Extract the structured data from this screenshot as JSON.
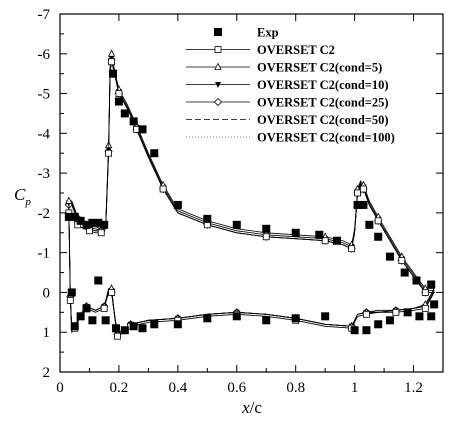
{
  "chart_data": {
    "type": "line",
    "xlabel_main": "x",
    "xlabel_unit": "/c",
    "ylabel_main": "C",
    "ylabel_sub": "p",
    "xlim": [
      0,
      1.3
    ],
    "ylim": [
      2,
      -7
    ],
    "y_inverted": true,
    "grid": false,
    "legend_position": "top-right",
    "xticks": [
      0,
      0.2,
      0.4,
      0.6,
      0.8,
      1,
      1.2
    ],
    "xtick_labels": [
      "0",
      "0.2",
      "0.4",
      "0.6",
      "0.8",
      "1",
      "1.2"
    ],
    "yticks": [
      -7,
      -6,
      -5,
      -4,
      -3,
      -2,
      -1,
      0,
      1,
      2
    ],
    "ytick_labels": [
      "-7",
      "-6",
      "-5",
      "-4",
      "-3",
      "-2",
      "-1",
      "0",
      "1",
      "2"
    ],
    "series": [
      {
        "name": "Exp",
        "style": "markers",
        "marker": "filled-square",
        "x": [
          0.03,
          0.05,
          0.07,
          0.09,
          0.11,
          0.13,
          0.15,
          0.18,
          0.2,
          0.22,
          0.25,
          0.28,
          0.32,
          0.4,
          0.5,
          0.6,
          0.7,
          0.8,
          0.88,
          0.94,
          1.01,
          1.03,
          1.05,
          1.08,
          1.12,
          1.17,
          1.21,
          1.26,
          1.27,
          0.04,
          0.05,
          0.07,
          0.09,
          0.11,
          0.13,
          0.155,
          0.19,
          0.22,
          0.25,
          0.28,
          0.32,
          0.4,
          0.5,
          0.6,
          0.7,
          0.8,
          0.9,
          1.0,
          1.04,
          1.08,
          1.12,
          1.18,
          1.22,
          1.26
        ],
        "y": [
          -1.9,
          -1.9,
          -1.8,
          -1.7,
          -1.75,
          -1.75,
          -1.7,
          -5.5,
          -4.8,
          -4.5,
          -4.3,
          -4.1,
          -3.5,
          -2.2,
          -1.85,
          -1.7,
          -1.6,
          -1.5,
          -1.45,
          -1.3,
          -2.2,
          -2.2,
          -1.7,
          -1.4,
          -0.9,
          -0.5,
          -0.3,
          -0.2,
          0.3,
          0.0,
          0.85,
          0.6,
          0.4,
          0.7,
          -0.3,
          0.7,
          0.9,
          0.95,
          0.85,
          0.9,
          0.8,
          0.8,
          0.65,
          0.6,
          0.7,
          0.65,
          0.6,
          0.95,
          0.95,
          0.8,
          0.7,
          0.5,
          0.6,
          0.6
        ]
      },
      {
        "name": "OVERSET C2",
        "style": "line-markers",
        "marker": "open-square",
        "x": [
          0.03,
          0.04,
          0.06,
          0.08,
          0.1,
          0.12,
          0.14,
          0.155,
          0.165,
          0.17,
          0.175,
          0.185,
          0.2,
          0.23,
          0.26,
          0.3,
          0.35,
          0.4,
          0.5,
          0.6,
          0.7,
          0.8,
          0.9,
          0.96,
          0.99,
          1.0,
          1.01,
          1.02,
          1.03,
          1.05,
          1.08,
          1.12,
          1.16,
          1.2,
          1.24,
          1.27,
          1.24,
          1.2,
          1.14,
          1.08,
          1.04,
          1.01,
          0.99,
          0.9,
          0.8,
          0.7,
          0.6,
          0.5,
          0.4,
          0.3,
          0.24,
          0.21,
          0.195,
          0.185,
          0.175,
          0.165,
          0.15,
          0.12,
          0.09,
          0.07,
          0.05,
          0.04,
          0.035,
          0.03
        ],
        "y": [
          -2.0,
          -2.0,
          -1.7,
          -1.6,
          -1.55,
          -1.5,
          -1.5,
          -1.6,
          -3.5,
          -5.5,
          -5.8,
          -5.5,
          -5.0,
          -4.6,
          -4.1,
          -3.4,
          -2.6,
          -2.0,
          -1.7,
          -1.5,
          -1.4,
          -1.35,
          -1.3,
          -1.2,
          -1.1,
          -1.5,
          -2.5,
          -2.7,
          -2.6,
          -2.2,
          -1.8,
          -1.3,
          -0.8,
          -0.4,
          0.0,
          0.0,
          0.4,
          0.45,
          0.5,
          0.5,
          0.55,
          0.6,
          0.9,
          0.85,
          0.7,
          0.6,
          0.55,
          0.6,
          0.7,
          0.75,
          0.85,
          1.0,
          1.1,
          0.6,
          0.0,
          0.0,
          0.4,
          0.5,
          0.4,
          0.6,
          0.9,
          1.0,
          0.2,
          -2.0
        ]
      },
      {
        "name": "OVERSET C2(cond=5)",
        "style": "line-markers",
        "marker": "open-triangle",
        "x": [
          0.03,
          0.04,
          0.06,
          0.08,
          0.1,
          0.12,
          0.14,
          0.155,
          0.165,
          0.17,
          0.175,
          0.185,
          0.2,
          0.23,
          0.26,
          0.3,
          0.35,
          0.4,
          0.5,
          0.6,
          0.7,
          0.8,
          0.9,
          0.96,
          0.99,
          1.0,
          1.01,
          1.02,
          1.03,
          1.05,
          1.08,
          1.12,
          1.16,
          1.2,
          1.24,
          1.27,
          1.24,
          1.2,
          1.14,
          1.08,
          1.04,
          1.01,
          0.99,
          0.9,
          0.8,
          0.7,
          0.6,
          0.5,
          0.4,
          0.3,
          0.24,
          0.21,
          0.195,
          0.185,
          0.175,
          0.165,
          0.15,
          0.12,
          0.09,
          0.07,
          0.05,
          0.04,
          0.035,
          0.03
        ],
        "y": [
          -2.3,
          -2.3,
          -1.9,
          -1.8,
          -1.7,
          -1.65,
          -1.6,
          -1.7,
          -3.7,
          -5.7,
          -6.0,
          -5.6,
          -5.1,
          -4.7,
          -4.2,
          -3.5,
          -2.7,
          -2.1,
          -1.8,
          -1.6,
          -1.5,
          -1.45,
          -1.4,
          -1.3,
          -1.2,
          -1.6,
          -2.6,
          -2.8,
          -2.7,
          -2.3,
          -1.9,
          -1.4,
          -0.9,
          -0.5,
          -0.1,
          -0.1,
          0.3,
          0.4,
          0.45,
          0.45,
          0.5,
          0.55,
          0.85,
          0.8,
          0.65,
          0.55,
          0.5,
          0.55,
          0.65,
          0.7,
          0.8,
          0.95,
          1.05,
          0.55,
          -0.1,
          -0.1,
          0.35,
          0.45,
          0.35,
          0.55,
          0.85,
          0.95,
          0.1,
          -2.3
        ]
      },
      {
        "name": "OVERSET C2(cond=10)",
        "style": "line-markers",
        "marker": "filled-triangle-down",
        "x": [
          0.03,
          0.04,
          0.06,
          0.08,
          0.1,
          0.12,
          0.14,
          0.155,
          0.165,
          0.17,
          0.175,
          0.185,
          0.2,
          0.23,
          0.26,
          0.3,
          0.35,
          0.4,
          0.5,
          0.6,
          0.7,
          0.8,
          0.9,
          0.96,
          0.99,
          1.0,
          1.01,
          1.02,
          1.03,
          1.05,
          1.08,
          1.12,
          1.16,
          1.2,
          1.24,
          1.27,
          1.24,
          1.2,
          1.14,
          1.08,
          1.04,
          1.01,
          0.99,
          0.9,
          0.8,
          0.7,
          0.6,
          0.5,
          0.4,
          0.3,
          0.24,
          0.21,
          0.195,
          0.185,
          0.175,
          0.165,
          0.15,
          0.12,
          0.09,
          0.07,
          0.05,
          0.04,
          0.035,
          0.03
        ],
        "y": [
          -2.25,
          -2.25,
          -1.85,
          -1.75,
          -1.65,
          -1.6,
          -1.55,
          -1.65,
          -3.6,
          -5.6,
          -5.9,
          -5.55,
          -5.05,
          -4.65,
          -4.15,
          -3.45,
          -2.65,
          -2.05,
          -1.75,
          -1.55,
          -1.45,
          -1.4,
          -1.35,
          -1.25,
          -1.15,
          -1.55,
          -2.55,
          -2.75,
          -2.65,
          -2.25,
          -1.85,
          -1.35,
          -0.85,
          -0.45,
          -0.05,
          -0.05,
          0.35,
          0.4,
          0.45,
          0.5,
          0.5,
          0.55,
          0.85,
          0.8,
          0.65,
          0.55,
          0.5,
          0.55,
          0.65,
          0.7,
          0.8,
          0.95,
          1.05,
          0.55,
          -0.05,
          -0.05,
          0.35,
          0.45,
          0.35,
          0.55,
          0.85,
          0.95,
          0.1,
          -2.25
        ]
      },
      {
        "name": "OVERSET C2(cond=25)",
        "style": "line-markers",
        "marker": "open-diamond",
        "x": [
          0.03,
          0.04,
          0.06,
          0.08,
          0.1,
          0.12,
          0.14,
          0.155,
          0.165,
          0.17,
          0.175,
          0.185,
          0.2,
          0.23,
          0.26,
          0.3,
          0.35,
          0.4,
          0.5,
          0.6,
          0.7,
          0.8,
          0.9,
          0.96,
          0.99,
          1.0,
          1.01,
          1.02,
          1.03,
          1.05,
          1.08,
          1.12,
          1.16,
          1.2,
          1.24,
          1.27,
          1.24,
          1.2,
          1.14,
          1.08,
          1.04,
          1.01,
          0.99,
          0.9,
          0.8,
          0.7,
          0.6,
          0.5,
          0.4,
          0.3,
          0.24,
          0.21,
          0.195,
          0.185,
          0.175,
          0.165,
          0.15,
          0.12,
          0.09,
          0.07,
          0.05,
          0.04,
          0.035,
          0.03
        ],
        "y": [
          -2.2,
          -2.2,
          -1.8,
          -1.7,
          -1.6,
          -1.55,
          -1.55,
          -1.65,
          -3.55,
          -5.55,
          -5.85,
          -5.5,
          -5.0,
          -4.6,
          -4.1,
          -3.4,
          -2.6,
          -2.0,
          -1.7,
          -1.5,
          -1.4,
          -1.35,
          -1.3,
          -1.2,
          -1.1,
          -1.5,
          -2.5,
          -2.75,
          -2.6,
          -2.2,
          -1.8,
          -1.3,
          -0.8,
          -0.4,
          0.0,
          0.0,
          0.35,
          0.4,
          0.45,
          0.5,
          0.5,
          0.55,
          0.85,
          0.8,
          0.65,
          0.55,
          0.5,
          0.55,
          0.65,
          0.7,
          0.8,
          0.95,
          1.05,
          0.55,
          0.0,
          0.0,
          0.35,
          0.45,
          0.35,
          0.55,
          0.85,
          0.95,
          0.1,
          -2.2
        ]
      },
      {
        "name": "OVERSET C2(cond=50)",
        "style": "dashed",
        "marker": "none",
        "x": [
          0.03,
          0.04,
          0.06,
          0.08,
          0.1,
          0.12,
          0.14,
          0.155,
          0.165,
          0.17,
          0.175,
          0.185,
          0.2,
          0.23,
          0.26,
          0.3,
          0.35,
          0.4,
          0.5,
          0.6,
          0.7,
          0.8,
          0.9,
          0.96,
          0.99,
          1.0,
          1.01,
          1.02,
          1.03,
          1.05,
          1.08,
          1.12,
          1.16,
          1.2,
          1.24,
          1.27,
          1.24,
          1.2,
          1.14,
          1.08,
          1.04,
          1.01,
          0.99,
          0.9,
          0.8,
          0.7,
          0.6,
          0.5,
          0.4,
          0.3,
          0.24,
          0.21,
          0.195,
          0.185,
          0.175,
          0.165,
          0.15,
          0.12,
          0.09,
          0.07,
          0.05,
          0.04,
          0.035,
          0.03
        ],
        "y": [
          -2.2,
          -2.2,
          -1.8,
          -1.7,
          -1.6,
          -1.55,
          -1.55,
          -1.65,
          -3.55,
          -5.55,
          -5.85,
          -5.5,
          -5.0,
          -4.6,
          -4.1,
          -3.4,
          -2.6,
          -2.0,
          -1.7,
          -1.5,
          -1.4,
          -1.35,
          -1.3,
          -1.2,
          -1.1,
          -1.5,
          -2.5,
          -2.75,
          -2.6,
          -2.2,
          -1.8,
          -1.3,
          -0.8,
          -0.4,
          0.0,
          0.0,
          0.35,
          0.4,
          0.45,
          0.5,
          0.5,
          0.55,
          0.85,
          0.8,
          0.65,
          0.55,
          0.5,
          0.55,
          0.65,
          0.7,
          0.8,
          0.95,
          1.05,
          0.55,
          0.0,
          0.0,
          0.35,
          0.45,
          0.35,
          0.55,
          0.85,
          0.95,
          0.1,
          -2.2
        ]
      },
      {
        "name": "OVERSET C2(cond=100)",
        "style": "dotted",
        "marker": "none",
        "x": [
          0.03,
          0.04,
          0.06,
          0.08,
          0.1,
          0.12,
          0.14,
          0.155,
          0.165,
          0.17,
          0.175,
          0.185,
          0.2,
          0.23,
          0.26,
          0.3,
          0.35,
          0.4,
          0.5,
          0.6,
          0.7,
          0.8,
          0.9,
          0.96,
          0.99,
          1.0,
          1.01,
          1.02,
          1.03,
          1.05,
          1.08,
          1.12,
          1.16,
          1.2,
          1.24,
          1.27,
          1.24,
          1.2,
          1.14,
          1.08,
          1.04,
          1.01,
          0.99,
          0.9,
          0.8,
          0.7,
          0.6,
          0.5,
          0.4,
          0.3,
          0.24,
          0.21,
          0.195,
          0.185,
          0.175,
          0.165,
          0.15,
          0.12,
          0.09,
          0.07,
          0.05,
          0.04,
          0.035,
          0.03
        ],
        "y": [
          -2.2,
          -2.2,
          -1.8,
          -1.7,
          -1.6,
          -1.55,
          -1.55,
          -1.65,
          -3.55,
          -5.55,
          -5.85,
          -5.5,
          -5.0,
          -4.6,
          -4.1,
          -3.4,
          -2.6,
          -2.0,
          -1.7,
          -1.5,
          -1.4,
          -1.35,
          -1.3,
          -1.2,
          -1.1,
          -1.5,
          -2.5,
          -2.75,
          -2.6,
          -2.2,
          -1.8,
          -1.3,
          -0.8,
          -0.4,
          0.0,
          0.0,
          0.35,
          0.4,
          0.45,
          0.5,
          0.5,
          0.55,
          0.85,
          0.8,
          0.65,
          0.55,
          0.5,
          0.55,
          0.65,
          0.7,
          0.8,
          0.95,
          1.05,
          0.55,
          0.0,
          0.0,
          0.35,
          0.45,
          0.35,
          0.55,
          0.85,
          0.95,
          0.1,
          -2.2
        ]
      }
    ]
  }
}
